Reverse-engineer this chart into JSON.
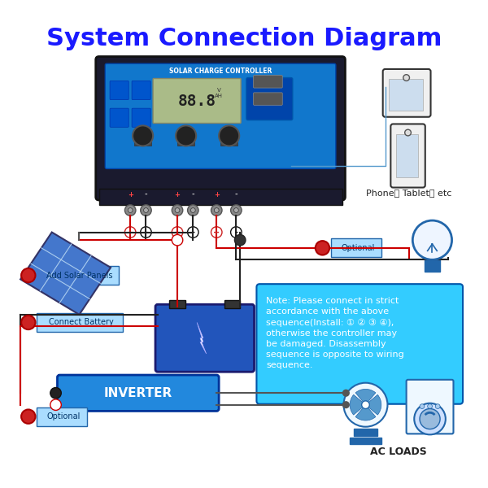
{
  "title": "System Connection Diagram",
  "title_color": "#1a1aff",
  "title_fontsize": 22,
  "bg_color": "#ffffff",
  "note_text": "Note: Please connect in strict\naccordance with the above\nsequence(Install: ① ② ③ ④),\notherwise the controller may\nbe damaged. Disassembly\nsequence is opposite to wiring\nsequence.",
  "note_bg": "#33ccff",
  "note_border": "#005599",
  "label1": "Connect Battery",
  "label2": "Add Solar Panels",
  "label3": "Optional",
  "label4": "Optional",
  "phone_tablet_label": "Phone， Tablet， etc",
  "ac_loads_label": "AC LOADS",
  "inverter_label": "INVERTER",
  "controller_label": "SOLAR CHARGE CONTROLLER",
  "wire_color": "#555577",
  "blue_color": "#1188cc",
  "red_color": "#cc0000",
  "dark_color": "#222233",
  "cyan_color": "#00ccff",
  "controller_bg": "#2255aa",
  "controller_dark": "#1a1a2e",
  "inverter_bg": "#2288dd",
  "battery_bg": "#2266bb"
}
